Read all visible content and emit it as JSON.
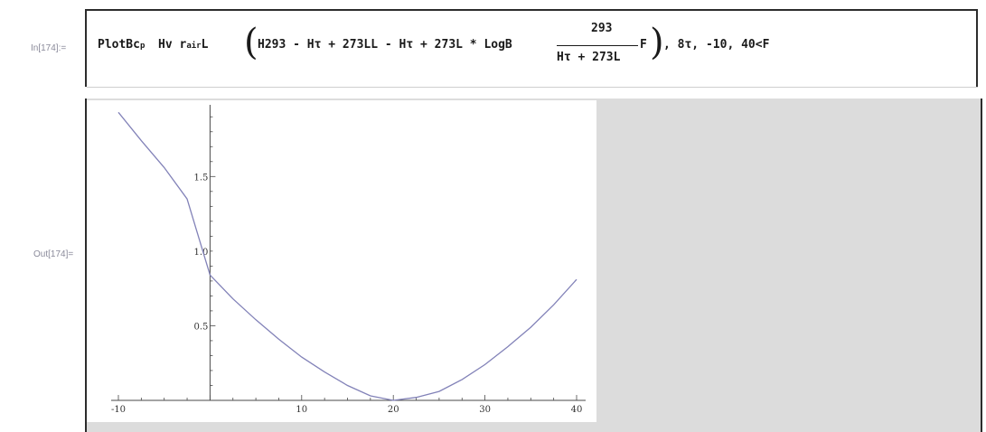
{
  "cells": {
    "in_label": "In[174]:=",
    "out_label": "Out[174]="
  },
  "formula": {
    "head": "PlotBc",
    "head_sub": "p",
    "arg1": "Hv r",
    "arg1_sub": "air",
    "arg1_tail": "L",
    "open_paren": "(",
    "before_fraction": "H293 - Hτ + 273LL - Hτ + 273L * LogB",
    "numerator": "293",
    "denominator": "Hτ + 273L",
    "after_fraction": "F",
    "close_paren": ")",
    "range": ", 8τ, -10, 40<F"
  },
  "chart_data": {
    "type": "line",
    "xlim": [
      -10,
      40
    ],
    "ylim": [
      0,
      1.95
    ],
    "x_ticks": [
      "-10",
      "10",
      "20",
      "30",
      "40"
    ],
    "y_ticks": [
      "0.5",
      "1.0",
      "1.5"
    ],
    "x_tick_values": [
      -10,
      10,
      20,
      30,
      40
    ],
    "y_tick_values": [
      0.5,
      1.0,
      1.5
    ],
    "series": [
      {
        "color": "#8282b8",
        "points": [
          [
            -10,
            1.93
          ],
          [
            -7.5,
            1.74
          ],
          [
            -5,
            1.56
          ],
          [
            -2.5,
            1.35
          ],
          [
            0,
            0.84
          ],
          [
            2.5,
            0.68
          ],
          [
            5,
            0.54
          ],
          [
            7.5,
            0.41
          ],
          [
            10,
            0.29
          ],
          [
            12.5,
            0.19
          ],
          [
            15,
            0.1
          ],
          [
            17.5,
            0.03
          ],
          [
            20,
            0.0
          ],
          [
            22.5,
            0.02
          ],
          [
            25,
            0.06
          ],
          [
            27.5,
            0.14
          ],
          [
            30,
            0.24
          ],
          [
            32.5,
            0.36
          ],
          [
            35,
            0.49
          ],
          [
            37.5,
            0.64
          ],
          [
            40,
            0.81
          ]
        ]
      }
    ],
    "axis_color": "#4a4a4a",
    "grid": false
  }
}
